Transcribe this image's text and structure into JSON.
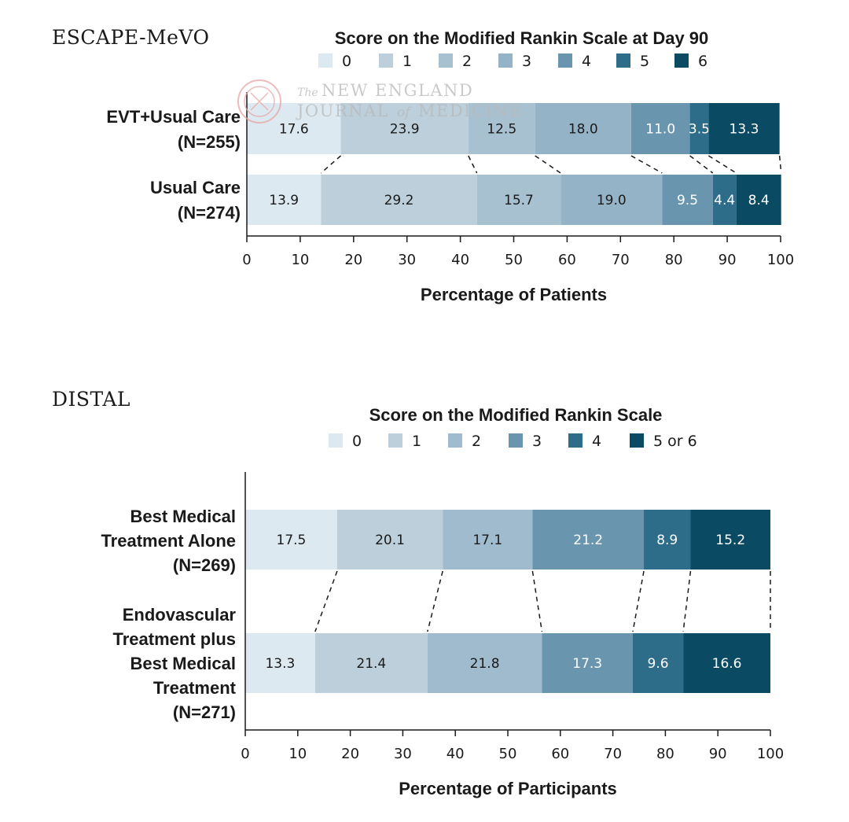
{
  "watermark": {
    "line1_the": "The",
    "line1_rest": "NEW ENGLAND",
    "line2_a": "JOURNAL",
    "line2_of": "of",
    "line2_b": "MEDICINE"
  },
  "chart_data": [
    {
      "type": "bar",
      "orientation": "horizontal-stacked",
      "panel_title": "ESCAPE-MeVO",
      "title": "Score on the Modified Rankin Scale at Day 90",
      "xlabel": "Percentage of Patients",
      "xlim": [
        0,
        100
      ],
      "ticks": [
        "0",
        "10",
        "20",
        "30",
        "40",
        "50",
        "60",
        "70",
        "80",
        "90",
        "100"
      ],
      "legend": [
        "0",
        "1",
        "2",
        "3",
        "4",
        "5",
        "6"
      ],
      "colors": [
        "#dde9f1",
        "#bccfdb",
        "#a8c1d1",
        "#95b3c7",
        "#6a95af",
        "#2e6d8a",
        "#0b4a63"
      ],
      "label_colors": [
        "#1a1a1a",
        "#1a1a1a",
        "#1a1a1a",
        "#1a1a1a",
        "#ffffff",
        "#ffffff",
        "#ffffff"
      ],
      "rows": [
        {
          "label_lines": [
            "EVT+Usual Care",
            "(N=255)"
          ],
          "values": [
            17.6,
            23.9,
            12.5,
            18.0,
            11.0,
            3.5,
            13.3
          ]
        },
        {
          "label_lines": [
            "Usual Care",
            "(N=274)"
          ],
          "values": [
            13.9,
            29.2,
            15.7,
            19.0,
            9.5,
            4.4,
            8.4
          ]
        }
      ]
    },
    {
      "type": "bar",
      "orientation": "horizontal-stacked",
      "panel_title": "DISTAL",
      "title": "Score on the Modified Rankin Scale",
      "xlabel": "Percentage of Participants",
      "xlim": [
        0,
        100
      ],
      "ticks": [
        "0",
        "10",
        "20",
        "30",
        "40",
        "50",
        "60",
        "70",
        "80",
        "90",
        "100"
      ],
      "legend": [
        "0",
        "1",
        "2",
        "3",
        "4",
        "5 or 6"
      ],
      "colors": [
        "#dde9f1",
        "#bccfdb",
        "#a0bbcd",
        "#6a95af",
        "#2e6d8a",
        "#0b4a63"
      ],
      "label_colors": [
        "#1a1a1a",
        "#1a1a1a",
        "#1a1a1a",
        "#ffffff",
        "#ffffff",
        "#ffffff"
      ],
      "rows": [
        {
          "label_lines": [
            "Best Medical",
            "Treatment Alone",
            "(N=269)"
          ],
          "values": [
            17.5,
            20.1,
            17.1,
            21.2,
            8.9,
            15.2
          ]
        },
        {
          "label_lines": [
            "Endovascular",
            "Treatment plus",
            "Best Medical",
            "Treatment",
            "(N=271)"
          ],
          "values": [
            13.3,
            21.4,
            21.8,
            17.3,
            9.6,
            16.6
          ]
        }
      ]
    }
  ]
}
